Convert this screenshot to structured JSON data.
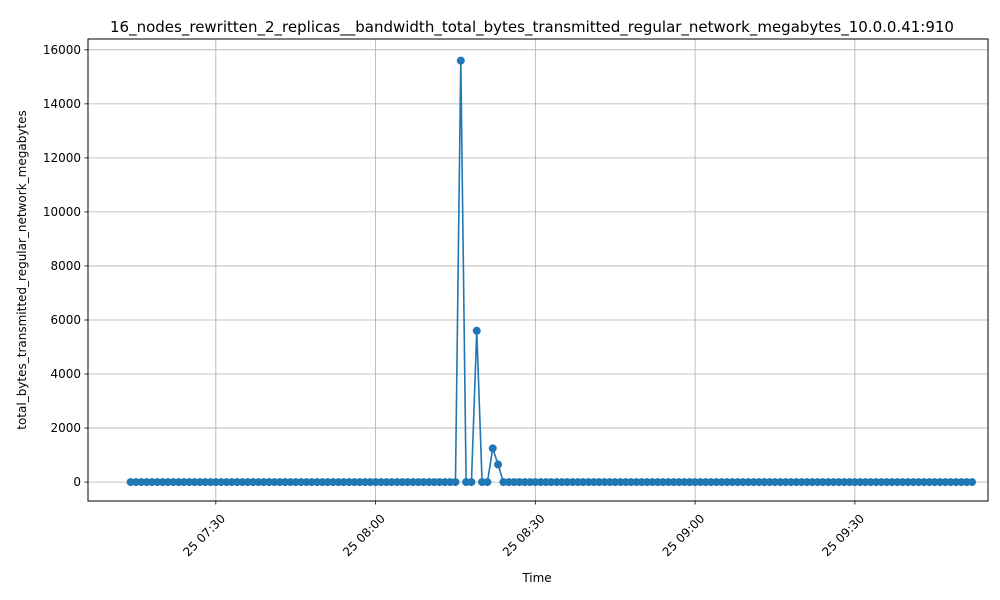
{
  "chart_data": {
    "type": "line",
    "title": "16_nodes_rewritten_2_replicas__bandwidth_total_bytes_transmitted_regular_network_megabytes_10.0.0.41:910",
    "xlabel": "Time",
    "ylabel": "total_bytes_transmitted_regular_network_megabytes",
    "x_start": "25 07:14",
    "x_end": "25 09:52",
    "sample_interval_minutes": 1,
    "xlim": [
      "25 07:06",
      "25 09:55"
    ],
    "ylim": [
      -700,
      16400
    ],
    "x_ticks": [
      "25 07:30",
      "25 08:00",
      "25 08:30",
      "25 09:00",
      "25 09:30"
    ],
    "y_ticks": [
      0,
      2000,
      4000,
      6000,
      8000,
      10000,
      12000,
      14000,
      16000
    ],
    "grid": true,
    "marker": "circle",
    "color": "#1f77b4",
    "series": [
      {
        "values": [
          0,
          0,
          0,
          0,
          0,
          0,
          0,
          0,
          0,
          0,
          0,
          0,
          0,
          0,
          0,
          0,
          0,
          0,
          0,
          0,
          0,
          0,
          0,
          0,
          0,
          0,
          0,
          0,
          0,
          0,
          0,
          0,
          0,
          0,
          0,
          0,
          0,
          0,
          0,
          0,
          0,
          0,
          0,
          0,
          0,
          0,
          0,
          0,
          0,
          0,
          0,
          0,
          0,
          0,
          0,
          0,
          0,
          0,
          0,
          0,
          0,
          0,
          15600,
          0,
          0,
          5600,
          0,
          0,
          1250,
          650,
          0,
          0,
          0,
          0,
          0,
          0,
          0,
          0,
          0,
          0,
          0,
          0,
          0,
          0,
          0,
          0,
          0,
          0,
          0,
          0,
          0,
          0,
          0,
          0,
          0,
          0,
          0,
          0,
          0,
          0,
          0,
          0,
          0,
          0,
          0,
          0,
          0,
          0,
          0,
          0,
          0,
          0,
          0,
          0,
          0,
          0,
          0,
          0,
          0,
          0,
          0,
          0,
          0,
          0,
          0,
          0,
          0,
          0,
          0,
          0,
          0,
          0,
          0,
          0,
          0,
          0,
          0,
          0,
          0,
          0,
          0,
          0,
          0,
          0,
          0,
          0,
          0,
          0,
          0,
          0,
          0,
          0,
          0,
          0,
          0,
          0,
          0,
          0,
          0
        ]
      }
    ]
  }
}
